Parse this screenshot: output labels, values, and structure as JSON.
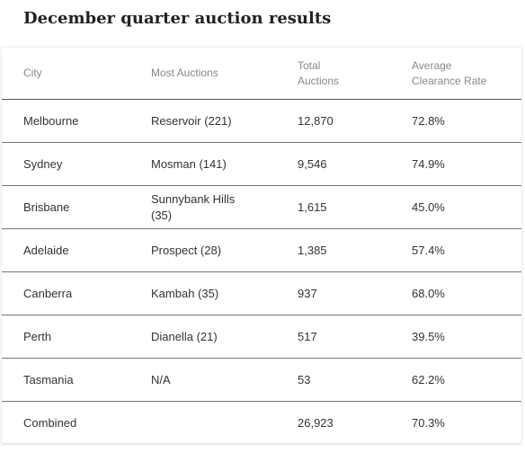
{
  "title": "December quarter auction results",
  "columns": {
    "city": "City",
    "most_auctions": "Most Auctions",
    "total_line1": "Total",
    "total_line2": "Auctions",
    "rate_line1": "Average",
    "rate_line2": "Clearance Rate"
  },
  "rows": [
    {
      "city": "Melbourne",
      "most": "Reservoir (221)",
      "total": "12,870",
      "rate": "72.8%"
    },
    {
      "city": "Sydney",
      "most": "Mosman (141)",
      "total": "9,546",
      "rate": "74.9%"
    },
    {
      "city": "Brisbane",
      "most": "Sunnybank Hills (35)",
      "total": "1,615",
      "rate": "45.0%"
    },
    {
      "city": "Adelaide",
      "most": "Prospect (28)",
      "total": "1,385",
      "rate": "57.4%"
    },
    {
      "city": "Canberra",
      "most": "Kambah (35)",
      "total": "937",
      "rate": "68.0%"
    },
    {
      "city": "Perth",
      "most": "Dianella (21)",
      "total": "517",
      "rate": "39.5%"
    },
    {
      "city": "Tasmania",
      "most": "N/A",
      "total": "53",
      "rate": "62.2%"
    },
    {
      "city": "Combined",
      "most": "",
      "total": "26,923",
      "rate": "70.3%"
    }
  ]
}
